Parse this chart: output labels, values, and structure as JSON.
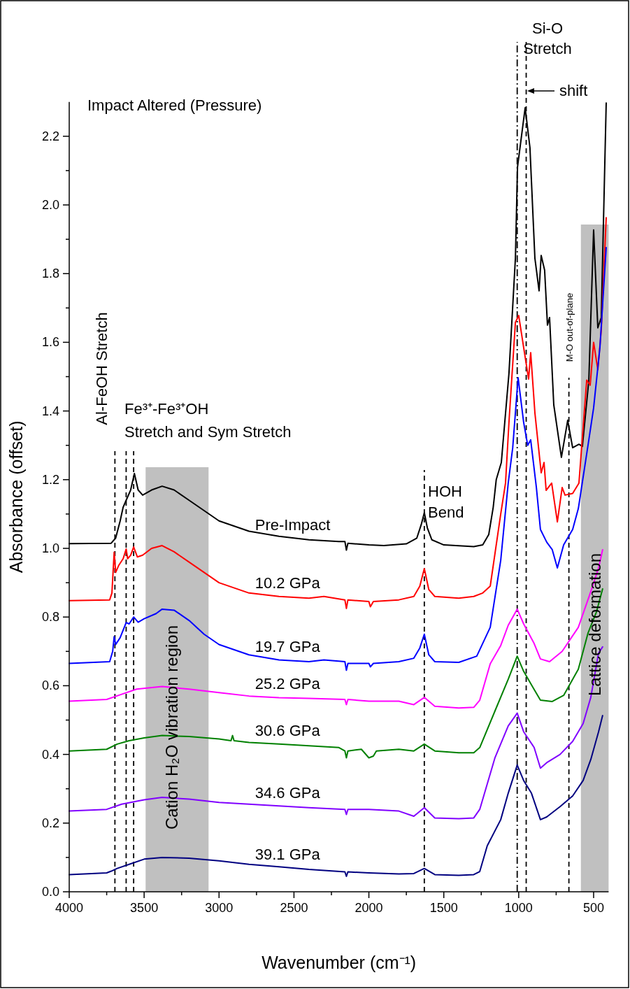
{
  "chart_data": {
    "type": "line",
    "title": "Impact Altered (Pressure)",
    "xlabel": "Wavenumber (cm⁻¹)",
    "ylabel": "Absorbance (offset)",
    "xlim": [
      4000,
      400
    ],
    "ylim": [
      0,
      2.3
    ],
    "xticks": [
      4000,
      {
        "value": 3750,
        "label": null
      },
      3500,
      {
        "value": 3250,
        "label": null
      },
      3000,
      {
        "value": 2750,
        "label": null
      },
      2500,
      {
        "value": 2250,
        "label": null
      },
      2000,
      {
        "value": 1750,
        "label": null
      },
      1500,
      {
        "value": 1250,
        "label": null
      },
      1000,
      {
        "value": 750,
        "label": null
      },
      500
    ],
    "yticks": [
      {
        "value": 0,
        "label": "0.0"
      },
      {
        "value": 0.1,
        "label": null
      },
      0.2,
      {
        "value": 0.3,
        "label": null
      },
      0.4,
      {
        "value": 0.5,
        "label": null
      },
      0.6,
      {
        "value": 0.7,
        "label": null
      },
      0.8,
      {
        "value": 0.9,
        "label": null
      },
      {
        "value": 1,
        "label": "1.0"
      },
      {
        "value": 1.1,
        "label": null
      },
      1.2,
      {
        "value": 1.3,
        "label": null
      },
      1.4,
      {
        "value": 1.5,
        "label": null
      },
      1.6,
      {
        "value": 1.7,
        "label": null
      },
      1.8,
      {
        "value": 1.9,
        "label": null
      },
      {
        "value": 2,
        "label": "2.0"
      },
      {
        "value": 2.1,
        "label": null
      },
      2.2
    ],
    "grid": false,
    "line_style": "solid",
    "series": [
      {
        "name": "Pre-Impact",
        "color": "#000000",
        "x": [
          4000,
          3720,
          3690,
          3660,
          3640,
          3620,
          3590,
          3565,
          3540,
          3510,
          3450,
          3380,
          3300,
          3200,
          3100,
          3000,
          2800,
          2600,
          2400,
          2200,
          2160,
          2150,
          2140,
          2000,
          1900,
          1750,
          1680,
          1650,
          1630,
          1610,
          1580,
          1500,
          1300,
          1240,
          1200,
          1170,
          1150,
          1116,
          1065,
          1022,
          1008,
          957,
          925,
          892,
          864,
          850,
          827,
          808,
          794,
          766,
          715,
          673,
          640,
          598,
          575,
          532,
          500,
          472,
          449,
          416
        ],
        "values": [
          1.014,
          1.015,
          1.03,
          1.08,
          1.12,
          1.14,
          1.17,
          1.218,
          1.17,
          1.155,
          1.17,
          1.181,
          1.17,
          1.14,
          1.11,
          1.08,
          1.05,
          1.035,
          1.025,
          1.02,
          1.02,
          0.995,
          1.015,
          1.01,
          1.008,
          1.013,
          1.03,
          1.07,
          1.104,
          1.06,
          1.025,
          1.01,
          1.005,
          1.01,
          1.04,
          1.12,
          1.2,
          1.25,
          1.51,
          1.845,
          2.11,
          2.283,
          2.167,
          1.845,
          1.75,
          1.853,
          1.81,
          1.65,
          1.672,
          1.418,
          1.265,
          1.373,
          1.293,
          1.303,
          1.297,
          1.489,
          1.927,
          1.642,
          1.672,
          2.297
        ]
      },
      {
        "name": "10.2 GPa",
        "color": "#ff0000",
        "x": [
          4000,
          3730,
          3715,
          3700,
          3690,
          3670,
          3640,
          3620,
          3610,
          3590,
          3570,
          3545,
          3510,
          3450,
          3380,
          3300,
          3200,
          3100,
          3000,
          2800,
          2600,
          2400,
          2300,
          2160,
          2150,
          2140,
          2000,
          1990,
          1970,
          1800,
          1700,
          1660,
          1630,
          1600,
          1560,
          1400,
          1300,
          1240,
          1190,
          1120,
          1088,
          1065,
          1022,
          1000,
          967,
          934,
          920,
          892,
          850,
          831,
          817,
          780,
          742,
          710,
          691,
          640,
          598,
          546,
          523,
          500,
          472,
          449,
          416
        ],
        "values": [
          0.848,
          0.85,
          0.87,
          0.989,
          0.93,
          0.95,
          0.97,
          0.998,
          0.97,
          0.98,
          1.004,
          0.975,
          0.98,
          1.0,
          1.008,
          0.99,
          0.96,
          0.93,
          0.9,
          0.87,
          0.86,
          0.855,
          0.86,
          0.85,
          0.825,
          0.85,
          0.845,
          0.83,
          0.845,
          0.85,
          0.86,
          0.89,
          0.941,
          0.88,
          0.86,
          0.855,
          0.86,
          0.87,
          0.89,
          1.1,
          1.19,
          1.367,
          1.658,
          1.678,
          1.585,
          1.493,
          1.57,
          1.395,
          1.22,
          1.25,
          1.169,
          1.19,
          1.077,
          1.177,
          1.155,
          1.16,
          1.19,
          1.49,
          1.475,
          1.6,
          1.52,
          1.635,
          1.963
        ]
      },
      {
        "name": "19.7 GPa",
        "color": "#0000ff",
        "x": [
          4000,
          3730,
          3710,
          3700,
          3690,
          3660,
          3620,
          3600,
          3570,
          3540,
          3500,
          3420,
          3380,
          3300,
          3200,
          3100,
          3000,
          2800,
          2600,
          2400,
          2300,
          2160,
          2150,
          2140,
          2000,
          1990,
          1970,
          1800,
          1700,
          1660,
          1630,
          1600,
          1560,
          1400,
          1280,
          1190,
          1120,
          1070,
          1040,
          1004,
          967,
          940,
          920,
          882,
          855,
          813,
          776,
          742,
          700,
          640,
          602,
          532,
          500,
          458,
          416
        ],
        "values": [
          0.665,
          0.67,
          0.7,
          0.743,
          0.72,
          0.74,
          0.784,
          0.78,
          0.8,
          0.785,
          0.795,
          0.81,
          0.823,
          0.82,
          0.79,
          0.75,
          0.72,
          0.69,
          0.675,
          0.67,
          0.675,
          0.67,
          0.645,
          0.665,
          0.665,
          0.655,
          0.665,
          0.67,
          0.68,
          0.71,
          0.75,
          0.69,
          0.67,
          0.668,
          0.686,
          0.77,
          0.965,
          1.19,
          1.293,
          1.497,
          1.367,
          1.3,
          1.316,
          1.177,
          1.055,
          1.018,
          0.996,
          0.943,
          1.01,
          1.055,
          1.116,
          1.316,
          1.409,
          1.585,
          1.876
        ]
      },
      {
        "name": "25.2 GPa",
        "color": "#ff00ff",
        "x": [
          4000,
          3750,
          3650,
          3550,
          3380,
          3200,
          3000,
          2800,
          2600,
          2400,
          2160,
          2150,
          2140,
          2000,
          1800,
          1700,
          1630,
          1560,
          1400,
          1300,
          1260,
          1190,
          1120,
          1070,
          1010,
          967,
          897,
          855,
          794,
          710,
          602,
          519,
          467,
          440
        ],
        "values": [
          0.555,
          0.56,
          0.575,
          0.59,
          0.598,
          0.59,
          0.58,
          0.57,
          0.565,
          0.563,
          0.56,
          0.545,
          0.56,
          0.555,
          0.555,
          0.545,
          0.566,
          0.54,
          0.535,
          0.537,
          0.558,
          0.664,
          0.717,
          0.776,
          0.823,
          0.78,
          0.723,
          0.678,
          0.67,
          0.7,
          0.77,
          0.874,
          0.943,
          0.996
        ]
      },
      {
        "name": "30.6 GPa",
        "color": "#008000",
        "x": [
          4000,
          3750,
          3680,
          3600,
          3500,
          3380,
          3200,
          3000,
          2920,
          2910,
          2900,
          2800,
          2600,
          2400,
          2200,
          2160,
          2150,
          2140,
          2050,
          2000,
          1970,
          1950,
          1800,
          1700,
          1630,
          1560,
          1400,
          1300,
          1260,
          1158,
          1070,
          1010,
          967,
          897,
          855,
          776,
          700,
          602,
          537,
          481,
          440
        ],
        "values": [
          0.41,
          0.415,
          0.43,
          0.44,
          0.448,
          0.455,
          0.452,
          0.445,
          0.44,
          0.455,
          0.44,
          0.435,
          0.43,
          0.425,
          0.42,
          0.41,
          0.39,
          0.41,
          0.415,
          0.39,
          0.395,
          0.41,
          0.415,
          0.41,
          0.43,
          0.41,
          0.405,
          0.405,
          0.42,
          0.527,
          0.619,
          0.686,
          0.642,
          0.589,
          0.558,
          0.554,
          0.572,
          0.648,
          0.754,
          0.815,
          0.882
        ]
      },
      {
        "name": "34.6 GPa",
        "color": "#8000ff",
        "x": [
          4000,
          3750,
          3650,
          3500,
          3380,
          3200,
          3000,
          2800,
          2600,
          2400,
          2160,
          2150,
          2140,
          2000,
          1800,
          1700,
          1630,
          1560,
          1400,
          1300,
          1260,
          1158,
          1070,
          1010,
          967,
          897,
          855,
          813,
          724,
          640,
          570,
          519,
          467,
          440
        ],
        "values": [
          0.235,
          0.24,
          0.255,
          0.268,
          0.275,
          0.27,
          0.26,
          0.255,
          0.25,
          0.245,
          0.24,
          0.225,
          0.24,
          0.24,
          0.235,
          0.22,
          0.245,
          0.215,
          0.213,
          0.215,
          0.24,
          0.391,
          0.483,
          0.52,
          0.466,
          0.42,
          0.36,
          0.376,
          0.4,
          0.438,
          0.49,
          0.566,
          0.695,
          0.713
        ]
      },
      {
        "name": "39.1 GPa",
        "color": "#000080",
        "x": [
          4000,
          3750,
          3720,
          3680,
          3600,
          3500,
          3380,
          3200,
          3000,
          2800,
          2600,
          2400,
          2160,
          2150,
          2140,
          2000,
          1800,
          1700,
          1630,
          1560,
          1400,
          1300,
          1260,
          1210,
          1120,
          1070,
          1010,
          967,
          915,
          855,
          813,
          724,
          640,
          570,
          519,
          467,
          440
        ],
        "values": [
          0.05,
          0.055,
          0.06,
          0.068,
          0.08,
          0.095,
          0.1,
          0.098,
          0.09,
          0.08,
          0.073,
          0.065,
          0.058,
          0.045,
          0.058,
          0.055,
          0.052,
          0.053,
          0.068,
          0.05,
          0.048,
          0.05,
          0.059,
          0.134,
          0.21,
          0.287,
          0.369,
          0.324,
          0.287,
          0.21,
          0.218,
          0.248,
          0.279,
          0.324,
          0.385,
          0.466,
          0.513
        ]
      }
    ],
    "ref_lines": [
      {
        "axis": "x",
        "value": 3695,
        "line_style": "dashed",
        "color": "#000000"
      },
      {
        "axis": "x",
        "value": 3620,
        "line_style": "dashed",
        "color": "#000000"
      },
      {
        "axis": "x",
        "value": 3570,
        "line_style": "dashed",
        "color": "#000000"
      },
      {
        "axis": "x",
        "value": 1630,
        "line_style": "dashed",
        "color": "#000000"
      },
      {
        "axis": "x",
        "value": 1010,
        "line_style": "dashdot",
        "color": "#000000"
      },
      {
        "axis": "x",
        "value": 950,
        "line_style": "dashed",
        "color": "#000000"
      },
      {
        "axis": "x",
        "value": 665,
        "line_style": "dashed",
        "color": "#000000"
      }
    ],
    "bands": [
      {
        "axis": "x",
        "from": 3490,
        "to": 3070,
        "color": "#c0c0c0"
      },
      {
        "axis": "x",
        "from": 585,
        "to": 400,
        "color": "#c0c0c0"
      }
    ],
    "annotations": [
      "Al-FeOH Stretch",
      "Fe³⁺-Fe³⁺OH Stretch and Sym Stretch",
      "HOH Bend",
      "Si-O Stretch",
      "shift",
      "M-O out-of-plane",
      "Cation H₂O vibration region",
      "Lattice deformation"
    ]
  }
}
